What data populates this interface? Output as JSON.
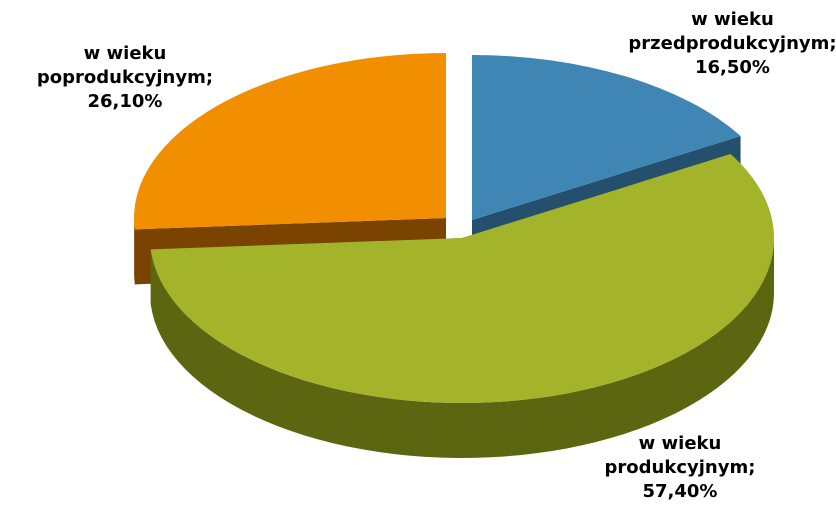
{
  "chart_data": {
    "type": "pie3d",
    "categories": [
      "w wieku przedprodukcyjnym",
      "w wieku produkcyjnym",
      "w wieku poprodukcyjnym"
    ],
    "label_separator": ";",
    "values": [
      16.5,
      57.4,
      26.1
    ],
    "value_labels": [
      "16,50%",
      "57,40%",
      "26,10%"
    ],
    "colors": [
      "#3f86b5",
      "#a3b32a",
      "#f18f00"
    ],
    "side_colors": [
      "#24506e",
      "#5c6610",
      "#7a4300"
    ]
  }
}
